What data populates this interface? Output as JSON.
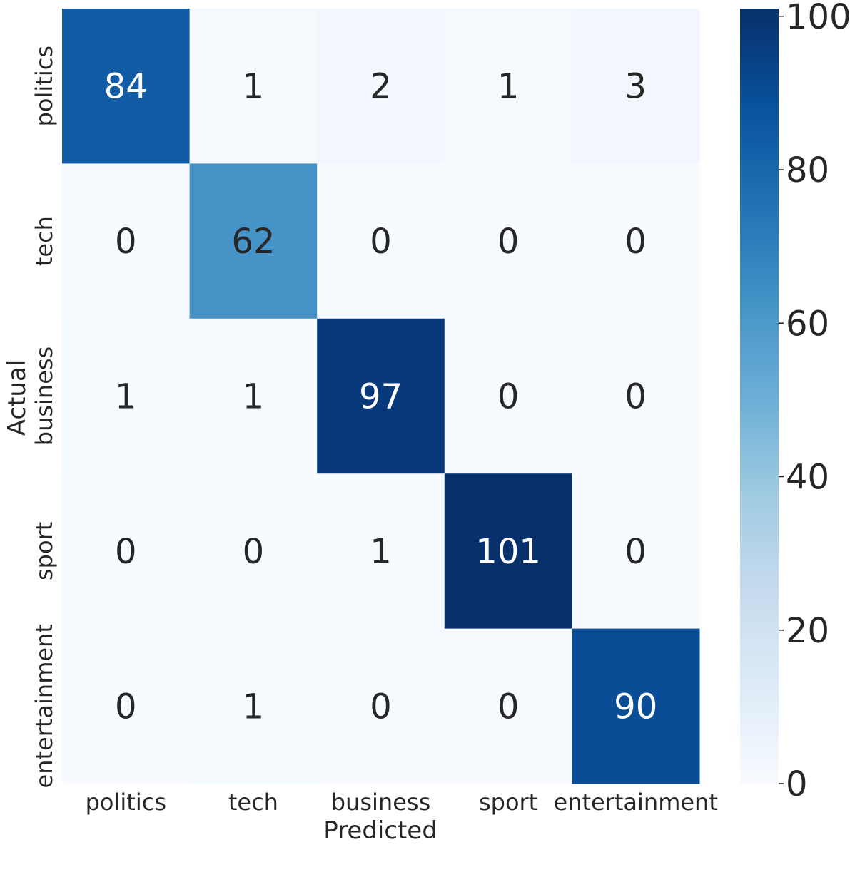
{
  "chart_data": {
    "type": "heatmap",
    "title": "",
    "xlabel": "Predicted",
    "ylabel": "Actual",
    "x_categories": [
      "politics",
      "tech",
      "business",
      "sport",
      "entertainment"
    ],
    "y_categories": [
      "politics",
      "tech",
      "business",
      "sport",
      "entertainment"
    ],
    "values": [
      [
        84,
        1,
        2,
        1,
        3
      ],
      [
        0,
        62,
        0,
        0,
        0
      ],
      [
        1,
        1,
        97,
        0,
        0
      ],
      [
        0,
        0,
        1,
        101,
        0
      ],
      [
        0,
        1,
        0,
        0,
        90
      ]
    ],
    "colormap": "Blues",
    "vmin": 0,
    "vmax": 101,
    "colorbar_ticks": [
      0,
      20,
      40,
      60,
      80,
      100
    ],
    "colorbar_tick_labels": [
      "0",
      "20",
      "40",
      "60",
      "80",
      "100"
    ],
    "annotations": true,
    "colors": {
      "light_text": "#ffffff",
      "dark_text": "#262626",
      "cmap_stops": [
        "#f7fbff",
        "#deebf7",
        "#c6dbef",
        "#9ecae1",
        "#6baed6",
        "#4292c6",
        "#2171b5",
        "#08519c",
        "#08306b"
      ]
    }
  }
}
